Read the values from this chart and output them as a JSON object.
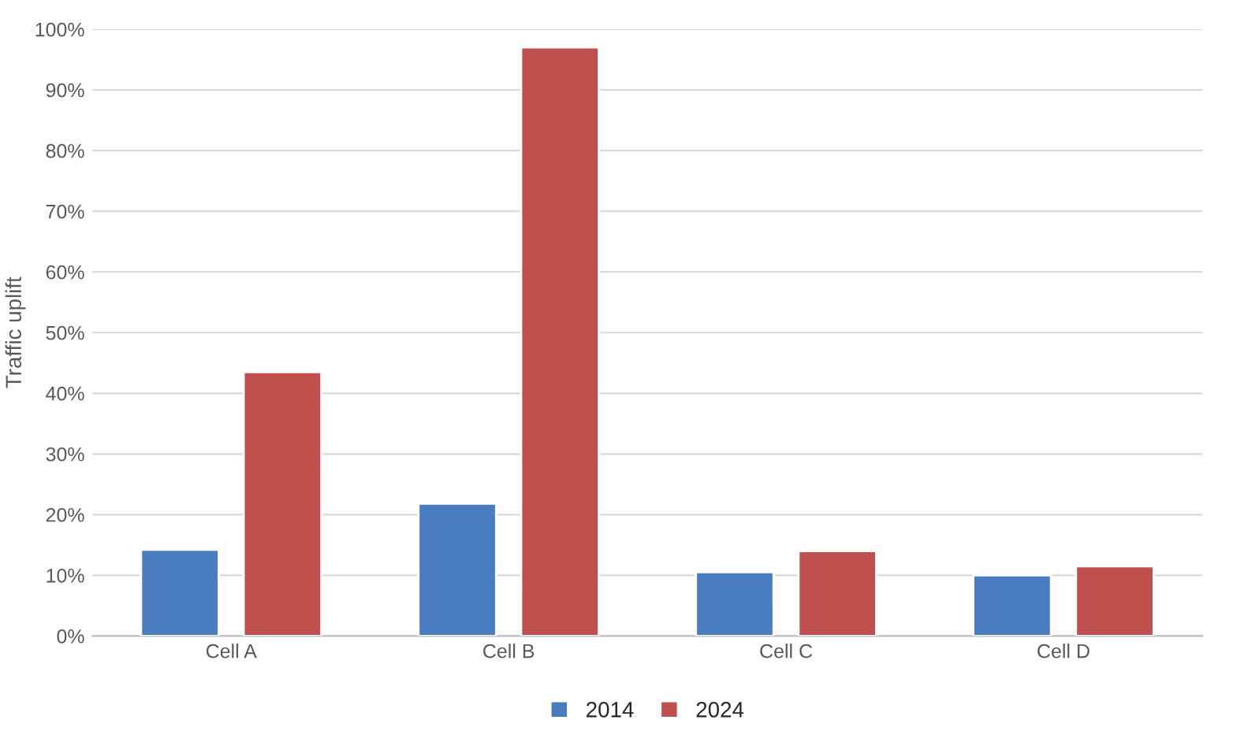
{
  "chart_data": {
    "type": "bar",
    "ylabel": "Traffic uplift",
    "categories": [
      "Cell A",
      "Cell B",
      "Cell C",
      "Cell D"
    ],
    "series": [
      {
        "name": "2014",
        "color": "#4a7cc0",
        "values": [
          14.2,
          21.8,
          10.5,
          10
        ]
      },
      {
        "name": "2024",
        "color": "#c0504d",
        "values": [
          43.5,
          97,
          14,
          11.5
        ]
      }
    ],
    "ylim": [
      0,
      100
    ],
    "yticks": [
      {
        "value": 0,
        "label": "0%"
      },
      {
        "value": 10,
        "label": "10%"
      },
      {
        "value": 20,
        "label": "20%"
      },
      {
        "value": 30,
        "label": "30%"
      },
      {
        "value": 40,
        "label": "40%"
      },
      {
        "value": 50,
        "label": "50%"
      },
      {
        "value": 60,
        "label": "60%"
      },
      {
        "value": 70,
        "label": "70%"
      },
      {
        "value": 80,
        "label": "80%"
      },
      {
        "value": 90,
        "label": "90%"
      },
      {
        "value": 100,
        "label": "100%"
      }
    ],
    "grid": "y",
    "legend": "bottom"
  }
}
